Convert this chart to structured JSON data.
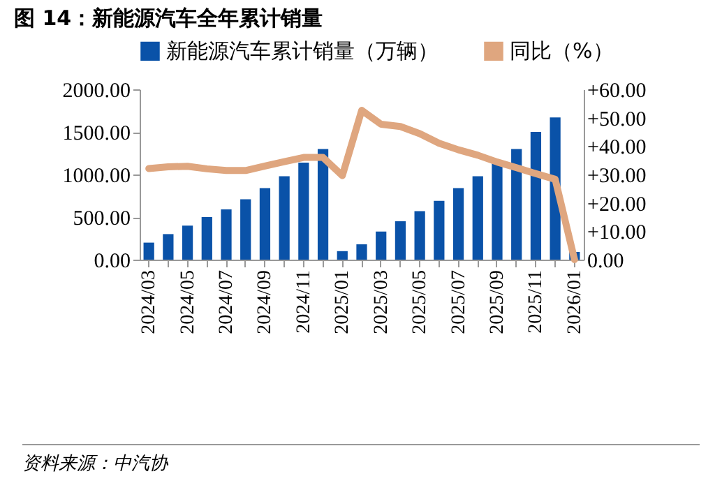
{
  "chart_data": {
    "type": "bar",
    "title": "图 14：新能源汽车全年累计销量",
    "categories": [
      "2024/03",
      null,
      "2024/05",
      null,
      "2024/07",
      null,
      "2024/09",
      null,
      "2024/11",
      null,
      "2025/01",
      null,
      "2025/03",
      null,
      "2025/05",
      null,
      "2025/07",
      null,
      "2025/09",
      null,
      "2025/11",
      null,
      "2026/01"
    ],
    "series": [
      {
        "name": "新能源汽车累计销量（万辆）",
        "color": "#0a52a8",
        "values": [
          200,
          300,
          400,
          500,
          590,
          710,
          840,
          980,
          1140,
          1300,
          100,
          180,
          330,
          450,
          570,
          690,
          840,
          980,
          1140,
          1300,
          1500,
          1670,
          90
        ]
      },
      {
        "name": "同比（%）",
        "type": "line",
        "axis": "y2",
        "color": "#dfa67f",
        "values": [
          32.1,
          32.7,
          32.9,
          32,
          31.4,
          31.4,
          33,
          34.5,
          36,
          36,
          29.6,
          52.6,
          47.7,
          46.9,
          44.4,
          41,
          38.7,
          36.8,
          34.4,
          32.4,
          30.3,
          28.3,
          0
        ]
      }
    ],
    "ylim": [
      0,
      2000
    ],
    "yticks": [
      {
        "value": 0,
        "label": "0.00"
      },
      {
        "value": 500,
        "label": "500.00"
      },
      {
        "value": 1000,
        "label": "1000.00"
      },
      {
        "value": 1500,
        "label": "1500.00"
      },
      {
        "value": 2000,
        "label": "2000.00"
      }
    ],
    "y2lim": [
      0,
      60
    ],
    "y2ticks": [
      {
        "value": 0,
        "label": "0.00"
      },
      {
        "value": 10,
        "label": "+10.00"
      },
      {
        "value": 20,
        "label": "+20.00"
      },
      {
        "value": 30,
        "label": "+30.00"
      },
      {
        "value": 40,
        "label": "+40.00"
      },
      {
        "value": 50,
        "label": "+50.00"
      },
      {
        "value": 60,
        "label": "+60.00"
      }
    ],
    "legend": "top",
    "grid": false,
    "annotations": [
      "资料来源：中汽协"
    ]
  }
}
